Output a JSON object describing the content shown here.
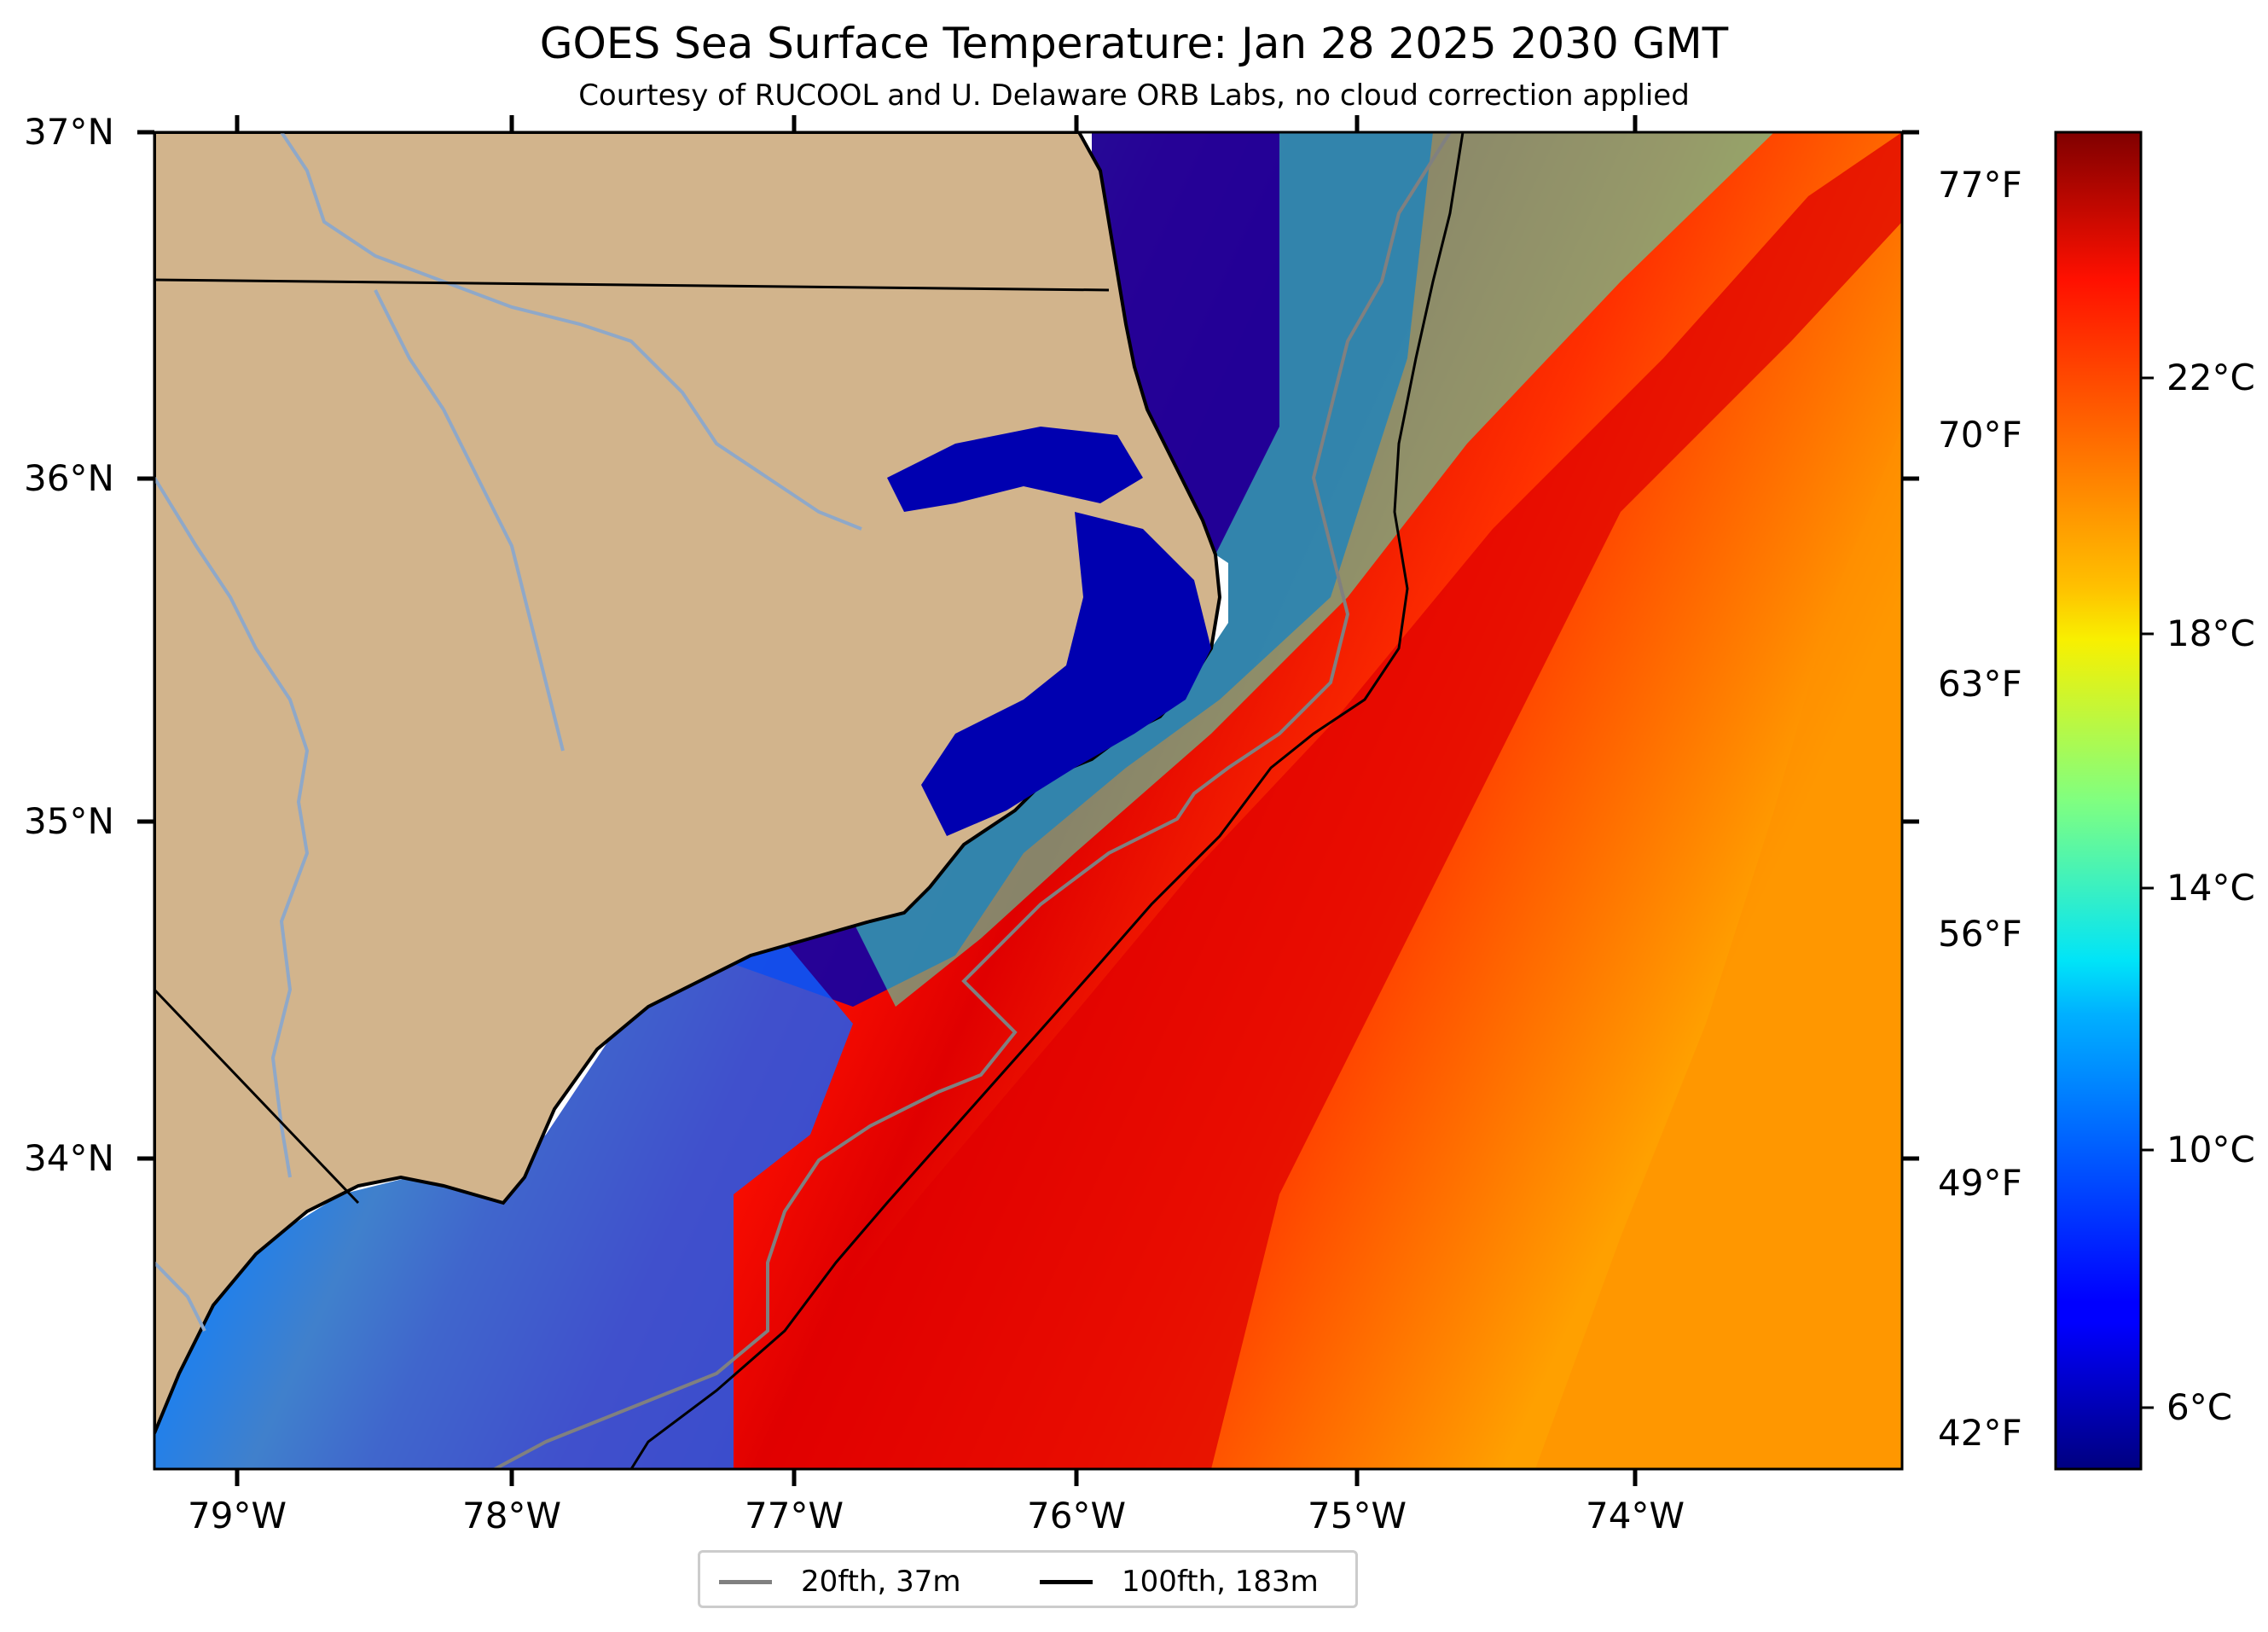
{
  "title": "GOES Sea Surface Temperature: Jan 28 2025 2030 GMT",
  "subtitle": "Courtesy of RUCOOL and U. Delaware ORB Labs, no cloud correction applied",
  "latitude_labels": [
    "37°N",
    "36°N",
    "35°N",
    "34°N"
  ],
  "longitude_labels": [
    "79°W",
    "78°W",
    "77°W",
    "76°W",
    "75°W",
    "74°W"
  ],
  "fahrenheit_labels": [
    "77°F",
    "70°F",
    "63°F",
    "56°F",
    "49°F",
    "42°F"
  ],
  "colorbar": {
    "labels": [
      "22°C",
      "18°C",
      "14°C",
      "10°C",
      "6°C"
    ],
    "colormap": "jet",
    "range_c": [
      4.5,
      25.5
    ]
  },
  "legend": [
    {
      "label": "20fth, 37m",
      "color": "#808080"
    },
    {
      "label": "100fth, 183m",
      "color": "#000000"
    }
  ],
  "colors": {
    "land": "#d2b48c",
    "nodata": "#ffffff",
    "river": "#8fa8c8"
  }
}
